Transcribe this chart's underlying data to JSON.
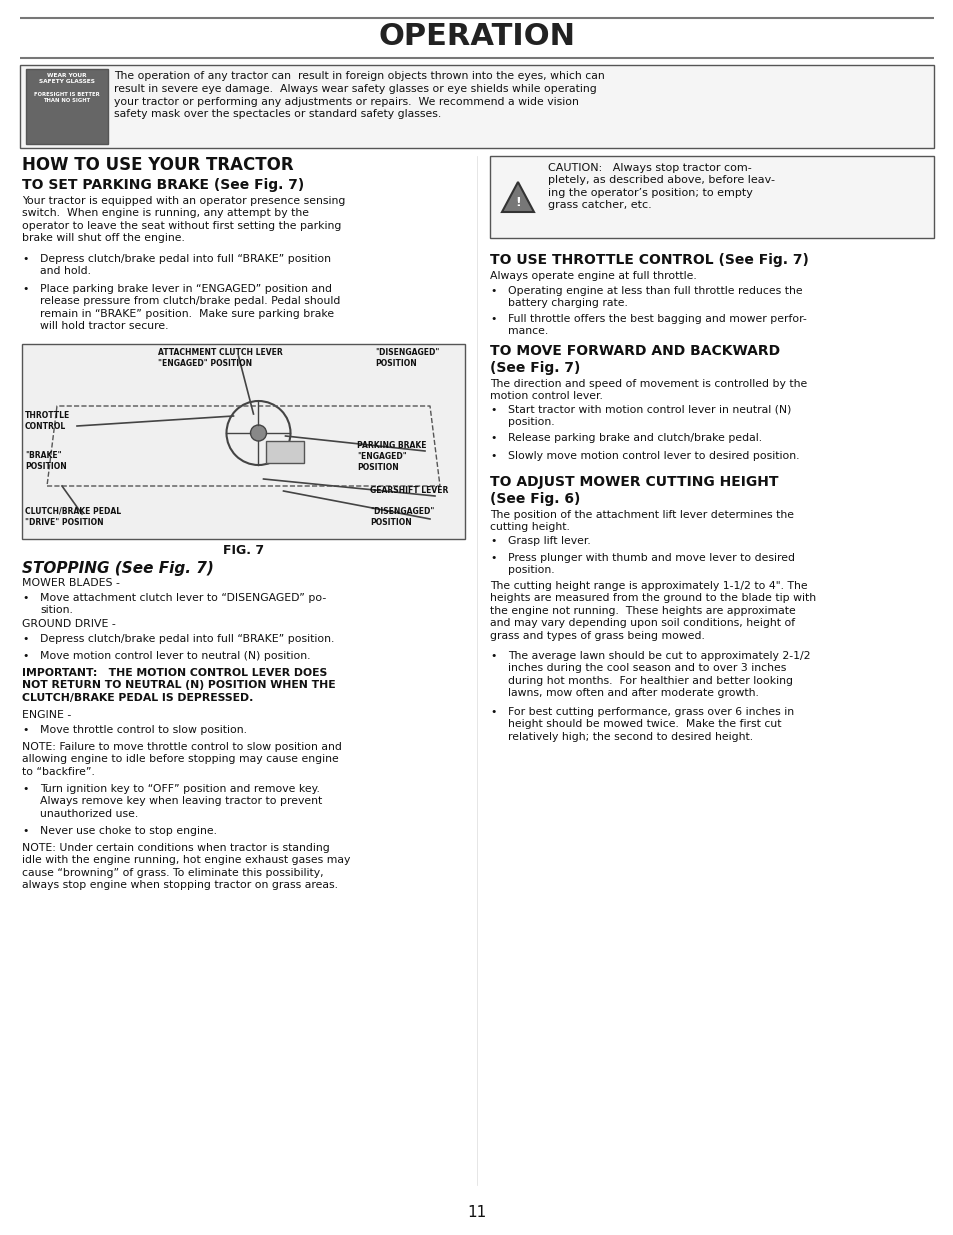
{
  "bg_color": "#ffffff",
  "page_width": 9.54,
  "page_height": 12.35,
  "title": "OPERATION",
  "title_fontsize": 24,
  "title_color": "#222222",
  "page_number": "11",
  "body_fontsize": 7.8,
  "safety_text": "The operation of any tractor can  result in foreign objects thrown into the eyes, which can\nresult in severe eye damage.  Always wear safety glasses or eye shields while operating\nyour tractor or performing any adjustments or repairs.  We recommend a wide vision\nsafety mask over the spectacles or standard safety glasses.",
  "caution_text": "CAUTION:   Always stop tractor com-\npletely, as described above, before leav-\ning the operator’s position; to empty\ngrass catcher, etc."
}
